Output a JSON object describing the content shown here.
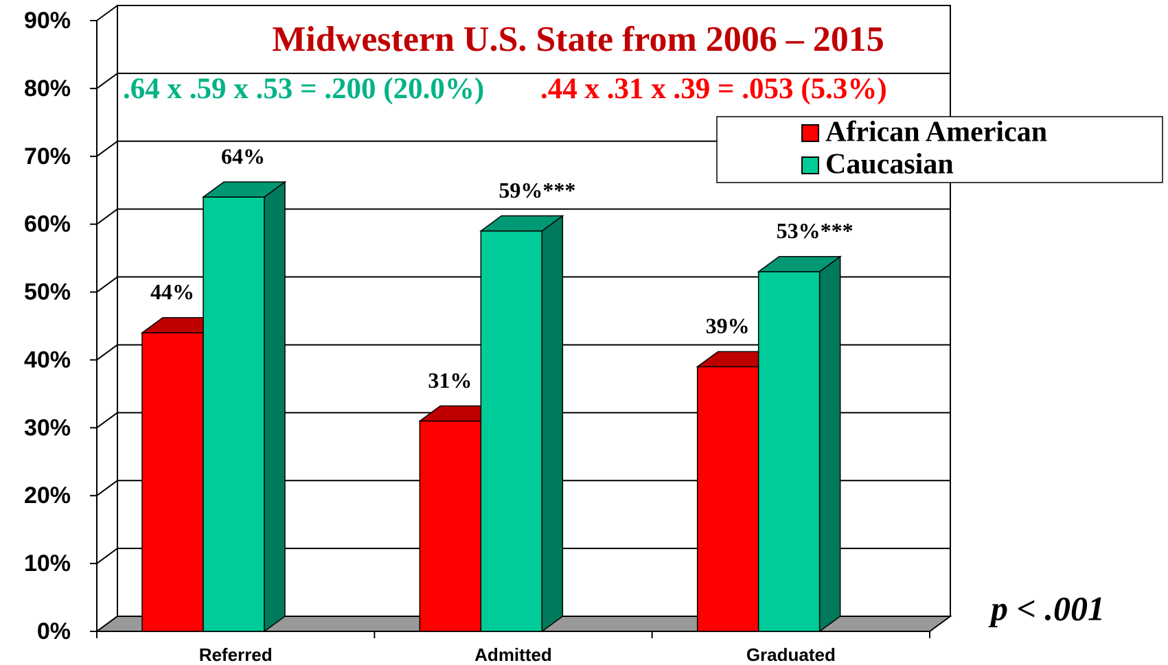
{
  "chart_data": {
    "type": "bar3d",
    "title": "Midwestern U.S. State from 2006 – 2015",
    "title_color": "#c00000",
    "annotations": [
      {
        "text": ".64 x .59 x .53 = .200 (20.0%)",
        "color": "#00b386"
      },
      {
        "text": ".44 x .31 x .39 = .053 (5.3%)",
        "color": "#ff0000"
      },
      {
        "text": "p < .001",
        "color": "#000000"
      }
    ],
    "categories": [
      "Referred",
      "Admitted",
      "Graduated"
    ],
    "series": [
      {
        "name": "African American",
        "color": "#ff0000",
        "values": [
          44,
          31,
          39
        ],
        "value_labels": [
          "44%",
          "31%",
          "39%"
        ]
      },
      {
        "name": "Caucasian",
        "color": "#00cc99",
        "values": [
          64,
          59,
          53
        ],
        "value_labels": [
          "64%",
          "59%***",
          "53%***"
        ]
      }
    ],
    "ylim": [
      0,
      90
    ],
    "yticks": [
      {
        "value": 0,
        "label": "0%"
      },
      {
        "value": 10,
        "label": "10%"
      },
      {
        "value": 20,
        "label": "20%"
      },
      {
        "value": 30,
        "label": "30%"
      },
      {
        "value": 40,
        "label": "40%"
      },
      {
        "value": 50,
        "label": "50%"
      },
      {
        "value": 60,
        "label": "60%"
      },
      {
        "value": 70,
        "label": "70%"
      },
      {
        "value": 80,
        "label": "80%"
      },
      {
        "value": 90,
        "label": "90%"
      }
    ],
    "grid": true,
    "legend": "upper right"
  }
}
